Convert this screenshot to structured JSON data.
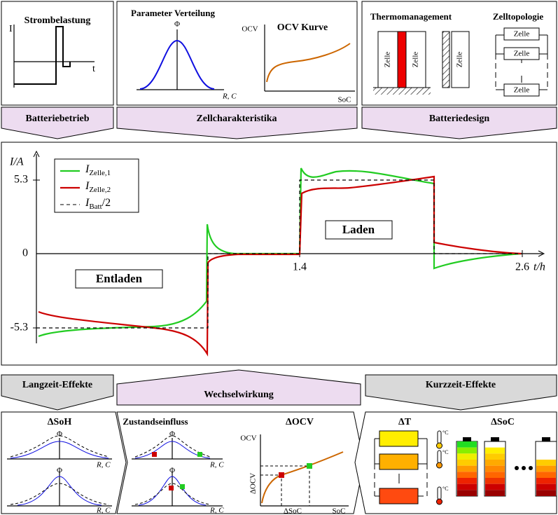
{
  "top_panels": {
    "strombelastung": {
      "title": "Strombelastung",
      "y_label": "I",
      "x_label": "t"
    },
    "parameter_verteilung": {
      "title": "Parameter Verteilung",
      "y_label": "Φ",
      "x_label": "R, C"
    },
    "ocv_kurve": {
      "title": "OCV Kurve",
      "y_label": "OCV",
      "x_label": "SoC"
    },
    "thermomanagement": {
      "title": "Thermomanagement",
      "cells": [
        "Zelle",
        "Zelle",
        "Zelle"
      ]
    },
    "zelltopologie": {
      "title": "Zelltopologie",
      "cells": [
        "Zelle",
        "Zelle",
        "Zelle"
      ]
    }
  },
  "top_banners": [
    "Batteriebetrieb",
    "Zellcharakteristika",
    "Batteriedesign"
  ],
  "main_plot": {
    "y_label": "I/A",
    "yticks": [
      "5.3",
      "0",
      "-5.3"
    ],
    "xticks": [
      "1.4",
      "2.6"
    ],
    "x_label": "t/h",
    "legend": [
      {
        "symbol": "I",
        "subscript": "Zelle,1"
      },
      {
        "symbol": "I",
        "subscript": "Zelle,2"
      },
      {
        "symbol": "I",
        "subscript": "Batt",
        "suffix": "/2"
      }
    ],
    "annotations": [
      "Laden",
      "Entladen"
    ]
  },
  "bottom_banners": [
    "Langzeit-Effekte",
    "Wechselwirkung",
    "Kurzzeit-Effekte"
  ],
  "bottom_panels": {
    "delta_soh": {
      "title": "ΔSoH",
      "plots": [
        {
          "y_label": "Φ",
          "x_label": "R, C"
        },
        {
          "y_label": "Φ",
          "x_label": "R, C"
        }
      ]
    },
    "zustandseinfluss": {
      "title": "Zustandseinfluss",
      "plots": [
        {
          "y_label": "Φ",
          "x_label": "R, C"
        },
        {
          "y_label": "Φ",
          "x_label": "R, C"
        }
      ]
    },
    "delta_ocv": {
      "title": "ΔOCV",
      "y_label": "OCV",
      "x_label": "SoC",
      "delta_y": "ΔOCV",
      "delta_x": "ΔSoC"
    },
    "delta_t": {
      "title": "ΔT",
      "units": [
        "°C",
        "°C",
        "°C"
      ]
    },
    "delta_soc": {
      "title": "ΔSoC"
    }
  }
}
